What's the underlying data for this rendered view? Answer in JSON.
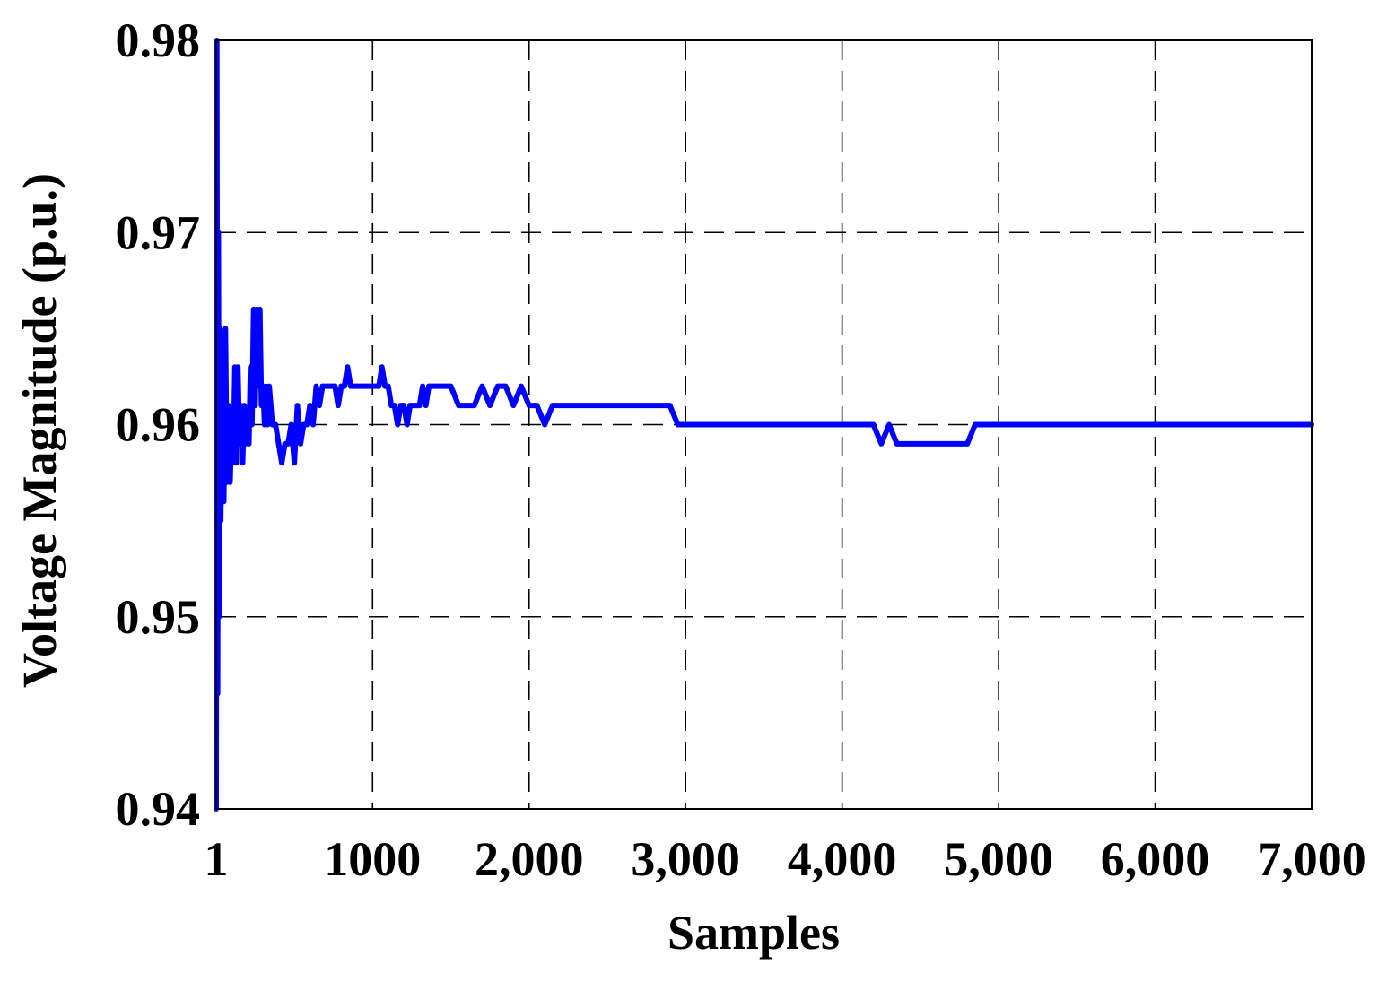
{
  "chart_data": {
    "type": "line",
    "title": "",
    "xlabel": "Samples",
    "ylabel": "Voltage Magnitude (p.u.)",
    "xlim": [
      1,
      7000
    ],
    "ylim": [
      0.94,
      0.98
    ],
    "grid": true,
    "line_color": "#0000ff",
    "x_ticks": [
      {
        "value": 1,
        "label": "1"
      },
      {
        "value": 1000,
        "label": "1000"
      },
      {
        "value": 2000,
        "label": "2,000"
      },
      {
        "value": 3000,
        "label": "3,000"
      },
      {
        "value": 4000,
        "label": "4,000"
      },
      {
        "value": 5000,
        "label": "5,000"
      },
      {
        "value": 6000,
        "label": "6,000"
      },
      {
        "value": 7000,
        "label": "7,000"
      }
    ],
    "y_ticks": [
      {
        "value": 0.94,
        "label": "0.94"
      },
      {
        "value": 0.95,
        "label": "0.95"
      },
      {
        "value": 0.96,
        "label": "0.96"
      },
      {
        "value": 0.97,
        "label": "0.97"
      },
      {
        "value": 0.98,
        "label": "0.98"
      }
    ],
    "series": [
      {
        "x": [
          1,
          5,
          10,
          15,
          20,
          25,
          30,
          40,
          50,
          60,
          70,
          80,
          90,
          100,
          110,
          120,
          130,
          140,
          150,
          160,
          170,
          180,
          190,
          200,
          210,
          220,
          230,
          240,
          250,
          260,
          270,
          280,
          290,
          300,
          310,
          320,
          330,
          340,
          350,
          360,
          380,
          400,
          420,
          440,
          460,
          480,
          500,
          520,
          540,
          560,
          580,
          600,
          620,
          640,
          660,
          680,
          700,
          720,
          740,
          760,
          780,
          800,
          820,
          840,
          860,
          880,
          900,
          920,
          940,
          960,
          980,
          1000,
          1020,
          1040,
          1060,
          1080,
          1100,
          1120,
          1140,
          1160,
          1180,
          1200,
          1220,
          1240,
          1260,
          1280,
          1300,
          1320,
          1340,
          1360,
          1380,
          1400,
          1420,
          1440,
          1460,
          1480,
          1500,
          1550,
          1600,
          1650,
          1700,
          1750,
          1800,
          1850,
          1900,
          1950,
          2000,
          2050,
          2100,
          2150,
          2200,
          2250,
          2300,
          2350,
          2400,
          2450,
          2500,
          2550,
          2600,
          2650,
          2700,
          2750,
          2800,
          2850,
          2900,
          2950,
          3000,
          3050,
          3100,
          3150,
          3200,
          3250,
          3300,
          3350,
          3400,
          3450,
          3500,
          3550,
          3600,
          3650,
          3700,
          3750,
          3800,
          3850,
          3900,
          3950,
          4000,
          4050,
          4100,
          4150,
          4200,
          4250,
          4300,
          4350,
          4400,
          4450,
          4500,
          4550,
          4600,
          4650,
          4700,
          4750,
          4800,
          4850,
          4900,
          4950,
          5000,
          5050,
          5100,
          5150,
          5200,
          5250,
          5300,
          5350,
          5400,
          5450,
          5500,
          5550,
          5600,
          5650,
          5700,
          5750,
          5800,
          5850,
          5900,
          5950,
          6000,
          6050,
          6100,
          6150,
          6200,
          6250,
          6300,
          6350,
          6400,
          6450,
          6500,
          6550,
          6600,
          6650,
          6700,
          6750,
          6800,
          6850,
          6900,
          6950,
          7000
        ],
        "y": [
          0.94,
          0.98,
          0.946,
          0.97,
          0.95,
          0.965,
          0.955,
          0.964,
          0.956,
          0.965,
          0.957,
          0.961,
          0.957,
          0.96,
          0.958,
          0.963,
          0.958,
          0.963,
          0.959,
          0.961,
          0.958,
          0.961,
          0.959,
          0.96,
          0.959,
          0.963,
          0.96,
          0.966,
          0.961,
          0.966,
          0.962,
          0.966,
          0.961,
          0.962,
          0.96,
          0.962,
          0.96,
          0.962,
          0.961,
          0.96,
          0.96,
          0.959,
          0.958,
          0.959,
          0.959,
          0.96,
          0.958,
          0.961,
          0.959,
          0.96,
          0.96,
          0.961,
          0.96,
          0.962,
          0.961,
          0.962,
          0.962,
          0.962,
          0.962,
          0.962,
          0.961,
          0.962,
          0.962,
          0.963,
          0.962,
          0.962,
          0.962,
          0.962,
          0.962,
          0.962,
          0.962,
          0.962,
          0.962,
          0.962,
          0.963,
          0.962,
          0.962,
          0.961,
          0.961,
          0.96,
          0.961,
          0.961,
          0.96,
          0.961,
          0.961,
          0.961,
          0.961,
          0.962,
          0.961,
          0.962,
          0.962,
          0.962,
          0.962,
          0.962,
          0.962,
          0.962,
          0.962,
          0.961,
          0.961,
          0.961,
          0.962,
          0.961,
          0.962,
          0.962,
          0.961,
          0.962,
          0.961,
          0.961,
          0.96,
          0.961,
          0.961,
          0.961,
          0.961,
          0.961,
          0.961,
          0.961,
          0.961,
          0.961,
          0.961,
          0.961,
          0.961,
          0.961,
          0.961,
          0.961,
          0.961,
          0.96,
          0.96,
          0.96,
          0.96,
          0.96,
          0.96,
          0.96,
          0.96,
          0.96,
          0.96,
          0.96,
          0.96,
          0.96,
          0.96,
          0.96,
          0.96,
          0.96,
          0.96,
          0.96,
          0.96,
          0.96,
          0.96,
          0.96,
          0.96,
          0.96,
          0.96,
          0.959,
          0.96,
          0.959,
          0.959,
          0.959,
          0.959,
          0.959,
          0.959,
          0.959,
          0.959,
          0.959,
          0.959,
          0.96,
          0.96,
          0.96,
          0.96,
          0.96,
          0.96,
          0.96,
          0.96,
          0.96,
          0.96,
          0.96,
          0.96,
          0.96,
          0.96,
          0.96,
          0.96,
          0.96,
          0.96,
          0.96,
          0.96,
          0.96,
          0.96,
          0.96,
          0.96,
          0.96,
          0.96,
          0.96,
          0.96,
          0.96,
          0.96,
          0.96,
          0.96,
          0.96,
          0.96,
          0.96,
          0.96,
          0.96,
          0.96,
          0.96,
          0.96,
          0.96,
          0.96,
          0.96,
          0.96
        ]
      }
    ]
  }
}
